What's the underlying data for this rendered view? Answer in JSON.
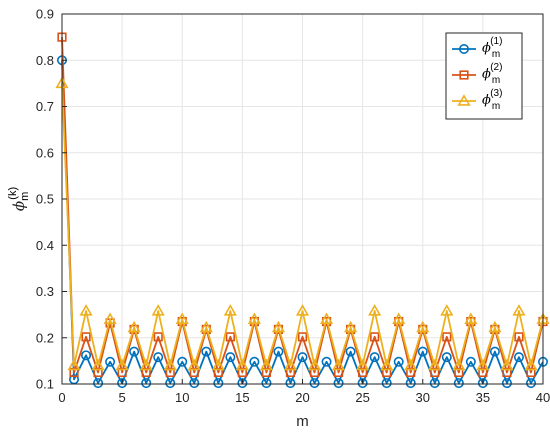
{
  "chart_data": {
    "type": "line",
    "xlabel": "m",
    "ylabel_symbol": "ϕ",
    "ylabel_sub": "m",
    "ylabel_sup": "(k)",
    "xlim": [
      0,
      40
    ],
    "ylim": [
      0.1,
      0.9
    ],
    "xticks": [
      0,
      5,
      10,
      15,
      20,
      25,
      30,
      35,
      40
    ],
    "yticks": [
      0.1,
      0.2,
      0.3,
      0.4,
      0.5,
      0.6,
      0.7,
      0.8,
      0.9
    ],
    "xtick_labels": [
      "0",
      "5",
      "10",
      "15",
      "20",
      "25",
      "30",
      "35",
      "40"
    ],
    "ytick_labels": [
      "0.1",
      "0.2",
      "0.3",
      "0.4",
      "0.5",
      "0.6",
      "0.7",
      "0.8",
      "0.9"
    ],
    "grid": true,
    "legend_position": "top-right",
    "x": [
      0,
      1,
      2,
      3,
      4,
      5,
      6,
      7,
      8,
      9,
      10,
      11,
      12,
      13,
      14,
      15,
      16,
      17,
      18,
      19,
      20,
      21,
      22,
      23,
      24,
      25,
      26,
      27,
      28,
      29,
      30,
      31,
      32,
      33,
      34,
      35,
      36,
      37,
      38,
      39,
      40
    ],
    "series": [
      {
        "symbol": "ϕ",
        "sub": "m",
        "sup": "(1)",
        "color": "#0072BD",
        "marker": "circle",
        "values": [
          0.8,
          0.11,
          0.162,
          0.102,
          0.148,
          0.102,
          0.17,
          0.102,
          0.158,
          0.102,
          0.148,
          0.102,
          0.17,
          0.102,
          0.158,
          0.102,
          0.148,
          0.102,
          0.17,
          0.102,
          0.158,
          0.102,
          0.148,
          0.102,
          0.17,
          0.102,
          0.158,
          0.102,
          0.148,
          0.102,
          0.17,
          0.102,
          0.158,
          0.102,
          0.148,
          0.102,
          0.17,
          0.102,
          0.158,
          0.102,
          0.148
        ]
      },
      {
        "symbol": "ϕ",
        "sub": "m",
        "sup": "(2)",
        "color": "#D95319",
        "marker": "square",
        "values": [
          0.85,
          0.125,
          0.202,
          0.125,
          0.232,
          0.125,
          0.218,
          0.125,
          0.202,
          0.125,
          0.235,
          0.125,
          0.218,
          0.125,
          0.202,
          0.125,
          0.235,
          0.125,
          0.218,
          0.125,
          0.202,
          0.125,
          0.235,
          0.125,
          0.218,
          0.125,
          0.202,
          0.125,
          0.235,
          0.125,
          0.218,
          0.125,
          0.202,
          0.125,
          0.235,
          0.125,
          0.218,
          0.125,
          0.202,
          0.125,
          0.235
        ]
      },
      {
        "symbol": "ϕ",
        "sub": "m",
        "sup": "(3)",
        "color": "#EDB120",
        "marker": "triangle",
        "values": [
          0.75,
          0.14,
          0.258,
          0.14,
          0.24,
          0.14,
          0.222,
          0.14,
          0.258,
          0.14,
          0.24,
          0.14,
          0.222,
          0.14,
          0.258,
          0.14,
          0.24,
          0.14,
          0.222,
          0.14,
          0.258,
          0.14,
          0.24,
          0.14,
          0.222,
          0.14,
          0.258,
          0.14,
          0.24,
          0.14,
          0.222,
          0.14,
          0.258,
          0.14,
          0.24,
          0.14,
          0.222,
          0.14,
          0.258,
          0.14,
          0.24
        ]
      }
    ]
  }
}
